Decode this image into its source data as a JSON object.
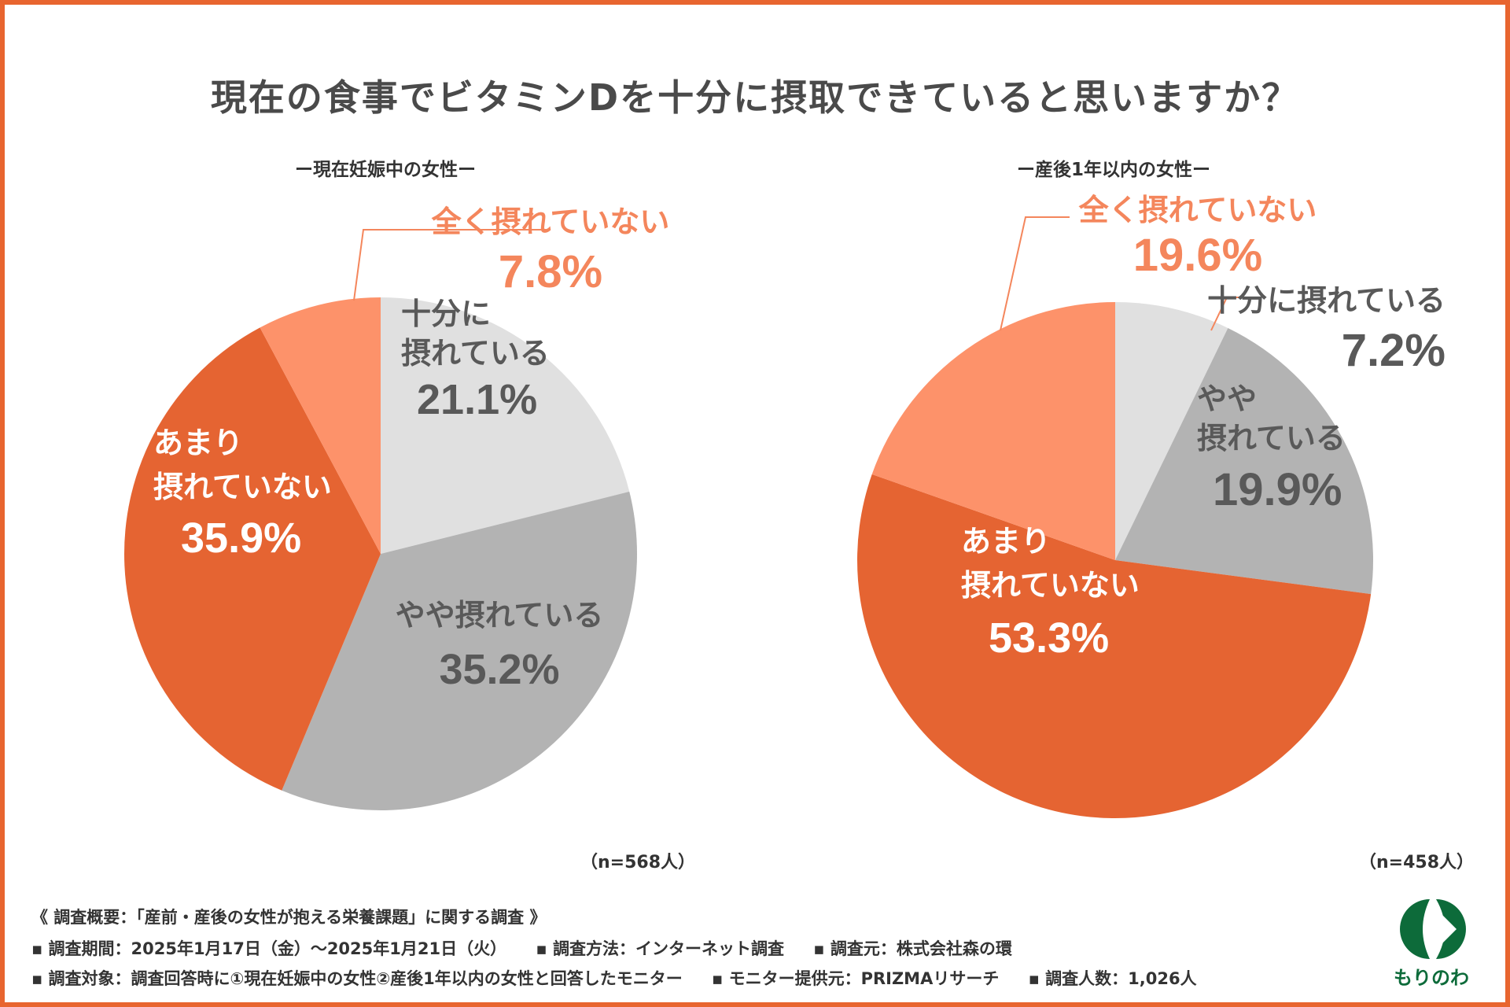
{
  "title": "現在の食事でビタミンDを十分に摂取できていると思いますか？",
  "chart_data": [
    {
      "type": "pie",
      "title": "ー現在妊娠中の女性ー",
      "n_label": "（n=568人）",
      "slices": [
        {
          "label": "十分に摂れている",
          "lines": [
            "十分に",
            "摂れている"
          ],
          "value": 21.1,
          "display": "21.1%",
          "color": "#e0e0e0"
        },
        {
          "label": "やや摂れている",
          "lines": [
            "やや摂れている"
          ],
          "value": 35.2,
          "display": "35.2%",
          "color": "#b3b3b3"
        },
        {
          "label": "あまり摂れていない",
          "lines": [
            "あまり",
            "摂れていない"
          ],
          "value": 35.9,
          "display": "35.9%",
          "color": "#e56432"
        },
        {
          "label": "全く摂れていない",
          "lines": [
            "全く摂れていない"
          ],
          "value": 7.8,
          "display": "7.8%",
          "color": "#fd926a"
        }
      ]
    },
    {
      "type": "pie",
      "title": "ー産後1年以内の女性ー",
      "n_label": "（n=458人）",
      "slices": [
        {
          "label": "十分に摂れている",
          "lines": [
            "十分に摂れている"
          ],
          "value": 7.2,
          "display": "7.2%",
          "color": "#e0e0e0"
        },
        {
          "label": "やや摂れている",
          "lines": [
            "やや",
            "摂れている"
          ],
          "value": 19.9,
          "display": "19.9%",
          "color": "#b3b3b3"
        },
        {
          "label": "あまり摂れていない",
          "lines": [
            "あまり",
            "摂れていない"
          ],
          "value": 53.3,
          "display": "53.3%",
          "color": "#e56432"
        },
        {
          "label": "全く摂れていない",
          "lines": [
            "全く摂れていない"
          ],
          "value": 19.6,
          "display": "19.6%",
          "color": "#fd926a"
        }
      ]
    }
  ],
  "footer": {
    "overview": "《 調査概要：「産前・産後の女性が抱える栄養課題」に関する調査 》",
    "period": "▪ 調査期間：2025年1月17日（金）～2025年1月21日（火）",
    "method": "▪ 調査方法：インターネット調査",
    "organizer": "▪ 調査元：株式会社森の環",
    "target": "▪ 調査対象：調査回答時に①現在妊娠中の女性②産後1年以内の女性と回答したモニター",
    "provider": "▪ モニター提供元：PRIZMAリサーチ",
    "count": "▪ 調査人数：1,026人"
  },
  "logo": {
    "text": "もりのわ",
    "color": "#0d6b3a"
  },
  "colors": {
    "accent": "#e8652f",
    "label_gray": "#595959",
    "label_white": "#ffffff",
    "label_orange": "#f4865c"
  }
}
